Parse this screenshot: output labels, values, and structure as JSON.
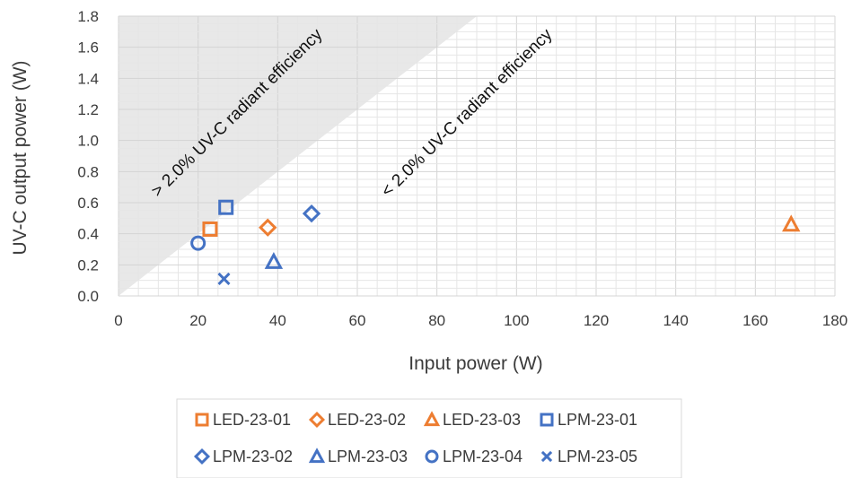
{
  "chart_data": {
    "type": "scatter",
    "xlabel": "Input power (W)",
    "ylabel": "UV-C output power (W)",
    "xlim": [
      0,
      180
    ],
    "ylim": [
      0,
      1.8
    ],
    "x_ticks": [
      "0",
      "20",
      "40",
      "60",
      "80",
      "100",
      "120",
      "140",
      "160",
      "180"
    ],
    "y_ticks": [
      "0.0",
      "0.2",
      "0.4",
      "0.6",
      "0.8",
      "1.0",
      "1.2",
      "1.4",
      "1.6",
      "1.8"
    ],
    "grid": true,
    "legend_position": "bottom",
    "shaded_region": {
      "description": "above 2.0% efficiency line",
      "line_points": [
        [
          0,
          0
        ],
        [
          90,
          1.8
        ]
      ],
      "color": "#e8e8e8"
    },
    "annotations": [
      "> 2.0% UV-C radiant efficiency",
      "< 2.0% UV-C radiant efficiency"
    ],
    "series": [
      {
        "name": "LED-23-01",
        "marker": "square",
        "color": "#ED7D31",
        "points": [
          [
            23,
            0.43
          ]
        ]
      },
      {
        "name": "LED-23-02",
        "marker": "diamond",
        "color": "#ED7D31",
        "points": [
          [
            37.5,
            0.44
          ]
        ]
      },
      {
        "name": "LED-23-03",
        "marker": "triangle",
        "color": "#ED7D31",
        "points": [
          [
            169,
            0.46
          ]
        ]
      },
      {
        "name": "LPM-23-01",
        "marker": "square",
        "color": "#4472C4",
        "points": [
          [
            27,
            0.57
          ]
        ]
      },
      {
        "name": "LPM-23-02",
        "marker": "diamond",
        "color": "#4472C4",
        "points": [
          [
            48.5,
            0.53
          ]
        ]
      },
      {
        "name": "LPM-23-03",
        "marker": "triangle",
        "color": "#4472C4",
        "points": [
          [
            39,
            0.22
          ]
        ]
      },
      {
        "name": "LPM-23-04",
        "marker": "circle",
        "color": "#4472C4",
        "points": [
          [
            20,
            0.34
          ]
        ]
      },
      {
        "name": "LPM-23-05",
        "marker": "x",
        "color": "#4472C4",
        "points": [
          [
            26.5,
            0.11
          ]
        ]
      }
    ]
  }
}
